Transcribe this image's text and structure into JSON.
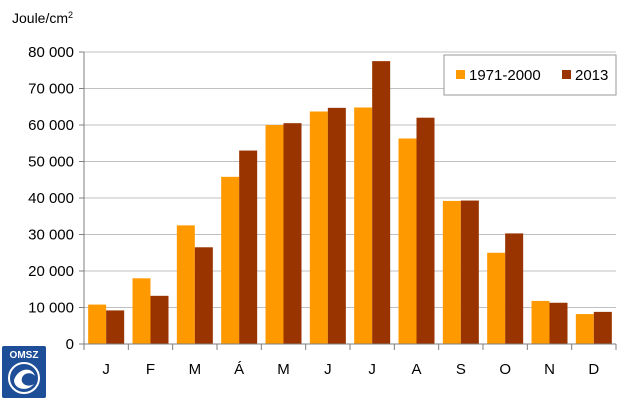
{
  "chart_data": {
    "type": "bar",
    "ylabel": "Joule/cm",
    "ylabel_sup": "2",
    "categories": [
      "J",
      "F",
      "M",
      "Á",
      "M",
      "J",
      "J",
      "A",
      "S",
      "O",
      "N",
      "D"
    ],
    "ylim": [
      0,
      80000
    ],
    "yticks": [
      0,
      10000,
      20000,
      30000,
      40000,
      50000,
      60000,
      70000,
      80000
    ],
    "ytick_labels": [
      "0",
      "10 000",
      "20 000",
      "30 000",
      "40 000",
      "50 000",
      "60 000",
      "70 000",
      "80 000"
    ],
    "grid": true,
    "legend_position": "top-right",
    "series": [
      {
        "name": "1971-2000",
        "color": "#ff9900",
        "values": [
          10800,
          18000,
          32500,
          45800,
          60000,
          63700,
          64800,
          56300,
          39200,
          25000,
          11800,
          8200
        ]
      },
      {
        "name": "2013",
        "color": "#993300",
        "values": [
          9200,
          13200,
          26500,
          53000,
          60500,
          64700,
          77500,
          62000,
          39300,
          30300,
          11300,
          8800
        ]
      }
    ]
  },
  "logo": {
    "text": "OMSZ",
    "color": "#1f4e99"
  }
}
